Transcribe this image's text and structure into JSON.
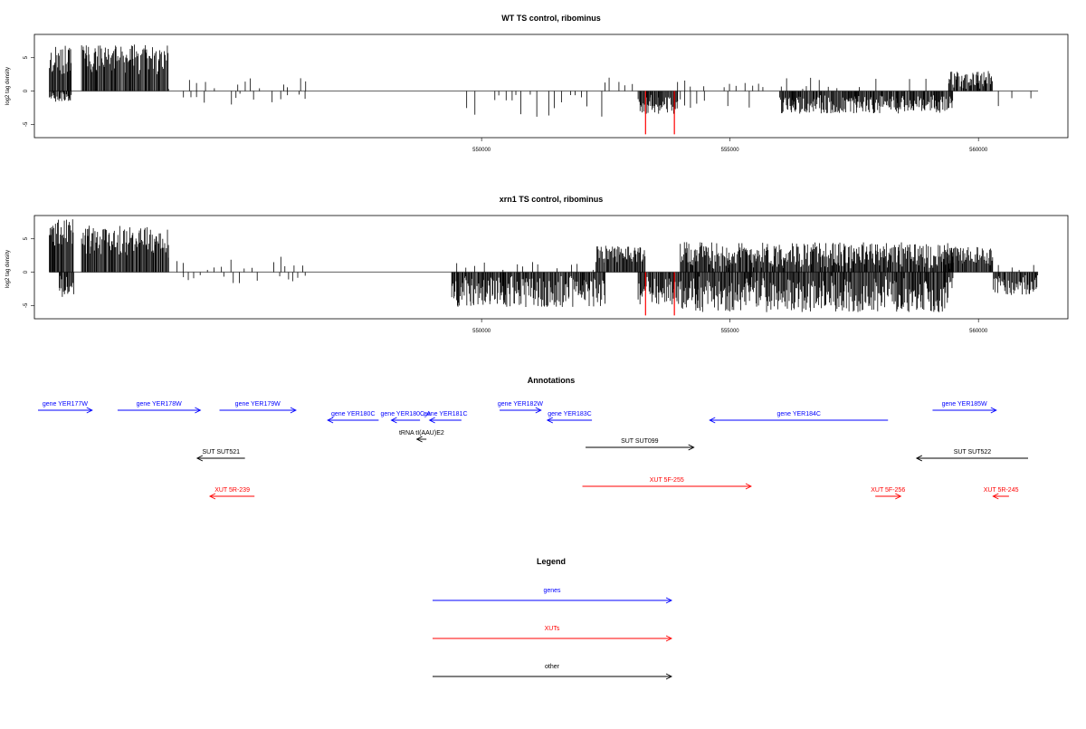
{
  "colors": {
    "gene": "#0000ff",
    "xut": "#ff0000",
    "other": "#000000",
    "highlight": "#ff0000"
  },
  "chart_data": [
    {
      "type": "bar",
      "title": "WT TS control, ribominus",
      "ylabel": "log2 tag density",
      "xlim": [
        541000,
        561800
      ],
      "ylim": [
        -7,
        8.5
      ],
      "xticks": [
        550000,
        555000,
        560000
      ],
      "xtick_labels": [
        "550000",
        "555000",
        "560000"
      ],
      "yticks": [
        5,
        0,
        -5
      ],
      "ytick_labels": [
        "5",
        "0",
        "-5"
      ],
      "highlights": [
        553300,
        553880
      ],
      "series": [
        {
          "kind": "pos-dense",
          "from": 541300,
          "to": 541750,
          "min": 2.5,
          "max": 6.8
        },
        {
          "kind": "pos-dense",
          "from": 541950,
          "to": 543700,
          "min": 2.5,
          "max": 7.0
        },
        {
          "kind": "neg-dense",
          "from": 541300,
          "to": 541750,
          "min": 0.2,
          "max": 1.6
        },
        {
          "kind": "pos-sparse",
          "from": 543700,
          "to": 546500,
          "min": 0.3,
          "max": 2.0
        },
        {
          "kind": "neg-sparse",
          "from": 544000,
          "to": 546500,
          "min": 0.3,
          "max": 2.4
        },
        {
          "kind": "neg-sparse",
          "from": 549700,
          "to": 552500,
          "min": 0.5,
          "max": 4.3
        },
        {
          "kind": "pos-sparse",
          "from": 552300,
          "to": 553300,
          "min": 0.5,
          "max": 2.3
        },
        {
          "kind": "neg-dense",
          "from": 553150,
          "to": 553950,
          "min": 0.5,
          "max": 3.5
        },
        {
          "kind": "pos-sparse",
          "from": 553800,
          "to": 555600,
          "min": 0.4,
          "max": 2.3
        },
        {
          "kind": "neg-sparse",
          "from": 554000,
          "to": 555600,
          "min": 0.3,
          "max": 2.8
        },
        {
          "kind": "pos-sparse",
          "from": 555500,
          "to": 559000,
          "min": 0.3,
          "max": 2.0
        },
        {
          "kind": "neg-dense",
          "from": 556000,
          "to": 559500,
          "min": 0.5,
          "max": 3.4
        },
        {
          "kind": "pos-dense",
          "from": 559400,
          "to": 560300,
          "min": 0.3,
          "max": 3.0
        },
        {
          "kind": "neg-sparse",
          "from": 560400,
          "to": 561200,
          "min": 0.5,
          "max": 2.8
        }
      ]
    },
    {
      "type": "bar",
      "title": "xrn1 TS control, ribominus",
      "ylabel": "log2 tag density",
      "xlim": [
        541000,
        561800
      ],
      "ylim": [
        -7,
        8.5
      ],
      "xticks": [
        550000,
        555000,
        560000
      ],
      "xtick_labels": [
        "550000",
        "555000",
        "560000"
      ],
      "yticks": [
        5,
        0,
        -5
      ],
      "ytick_labels": [
        "5",
        "0",
        "-5"
      ],
      "highlights": [
        553300,
        553880
      ],
      "series": [
        {
          "kind": "pos-dense",
          "from": 541300,
          "to": 541800,
          "min": 3.0,
          "max": 8.0
        },
        {
          "kind": "neg-dense",
          "from": 541500,
          "to": 541800,
          "min": 0.5,
          "max": 4.5
        },
        {
          "kind": "pos-dense",
          "from": 541950,
          "to": 543700,
          "min": 2.5,
          "max": 7.0
        },
        {
          "kind": "pos-sparse",
          "from": 543700,
          "to": 546500,
          "min": 0.3,
          "max": 2.4
        },
        {
          "kind": "neg-sparse",
          "from": 544000,
          "to": 546500,
          "min": 0.3,
          "max": 2.2
        },
        {
          "kind": "neg-dense",
          "from": 549400,
          "to": 552500,
          "min": 0.5,
          "max": 5.3
        },
        {
          "kind": "pos-sparse",
          "from": 549500,
          "to": 552500,
          "min": 0.3,
          "max": 1.8
        },
        {
          "kind": "pos-dense",
          "from": 552300,
          "to": 553300,
          "min": 1.5,
          "max": 4.0
        },
        {
          "kind": "neg-dense",
          "from": 553150,
          "to": 554000,
          "min": 0.5,
          "max": 5.0
        },
        {
          "kind": "pos-dense",
          "from": 554000,
          "to": 559500,
          "min": 0.5,
          "max": 4.5
        },
        {
          "kind": "neg-dense",
          "from": 554000,
          "to": 559500,
          "min": 0.5,
          "max": 6.0
        },
        {
          "kind": "pos-dense",
          "from": 559300,
          "to": 560300,
          "min": 1.0,
          "max": 3.8
        },
        {
          "kind": "neg-dense",
          "from": 560300,
          "to": 561200,
          "min": 0.3,
          "max": 3.5
        },
        {
          "kind": "pos-sparse",
          "from": 560400,
          "to": 561200,
          "min": 0.3,
          "max": 1.2
        }
      ]
    }
  ],
  "annotations": {
    "title": "Annotations",
    "features": [
      {
        "label": "gene YER177W",
        "type": "gene",
        "start": 540950,
        "end": 541800,
        "strand": "+",
        "row": 0
      },
      {
        "label": "gene YER178W",
        "type": "gene",
        "start": 542200,
        "end": 543500,
        "strand": "+",
        "row": 0
      },
      {
        "label": "gene YER179W",
        "type": "gene",
        "start": 543800,
        "end": 545000,
        "strand": "+",
        "row": 0
      },
      {
        "label": "gene YER180C",
        "type": "gene",
        "start": 545500,
        "end": 546300,
        "strand": "-",
        "row": 1
      },
      {
        "label": "gene YER180C-A",
        "type": "gene",
        "start": 546500,
        "end": 546950,
        "strand": "-",
        "row": 1
      },
      {
        "label": "gene YER181C",
        "type": "gene",
        "start": 547100,
        "end": 547600,
        "strand": "-",
        "row": 1
      },
      {
        "label": "gene YER182W",
        "type": "gene",
        "start": 548200,
        "end": 548850,
        "strand": "+",
        "row": 0
      },
      {
        "label": "gene YER183C",
        "type": "gene",
        "start": 548950,
        "end": 549650,
        "strand": "-",
        "row": 1
      },
      {
        "label": "gene YER184C",
        "type": "gene",
        "start": 551500,
        "end": 554300,
        "strand": "-",
        "row": 1
      },
      {
        "label": "gene YER185W",
        "type": "gene",
        "start": 555000,
        "end": 556000,
        "strand": "+",
        "row": 0
      },
      {
        "label": "tRNA tI(AAU)E2",
        "type": "other",
        "start": 546900,
        "end": 547050,
        "strand": "-",
        "row": 2
      },
      {
        "label": "SUT SUT521",
        "type": "other",
        "start": 543450,
        "end": 544200,
        "strand": "-",
        "row": 3
      },
      {
        "label": "SUT SUT099",
        "type": "other",
        "start": 549550,
        "end": 551250,
        "strand": "+",
        "row": 4
      },
      {
        "label": "SUT SUT522",
        "type": "other",
        "start": 554750,
        "end": 556500,
        "strand": "-",
        "row": 3
      },
      {
        "label": "XUT 5R-239",
        "type": "xut",
        "start": 543650,
        "end": 544350,
        "strand": "-",
        "row": 5
      },
      {
        "label": "XUT 5F-255",
        "type": "xut",
        "start": 549500,
        "end": 552150,
        "strand": "+",
        "row": 6
      },
      {
        "label": "XUT 5F-256",
        "type": "xut",
        "start": 554100,
        "end": 554500,
        "strand": "+",
        "row": 5
      },
      {
        "label": "XUT 5R-245",
        "type": "xut",
        "start": 555950,
        "end": 556200,
        "strand": "-",
        "row": 5
      }
    ]
  },
  "legend": {
    "title": "Legend",
    "items": [
      {
        "label": "genes",
        "type": "gene"
      },
      {
        "label": "XUTs",
        "type": "xut"
      },
      {
        "label": "other",
        "type": "other"
      }
    ]
  }
}
